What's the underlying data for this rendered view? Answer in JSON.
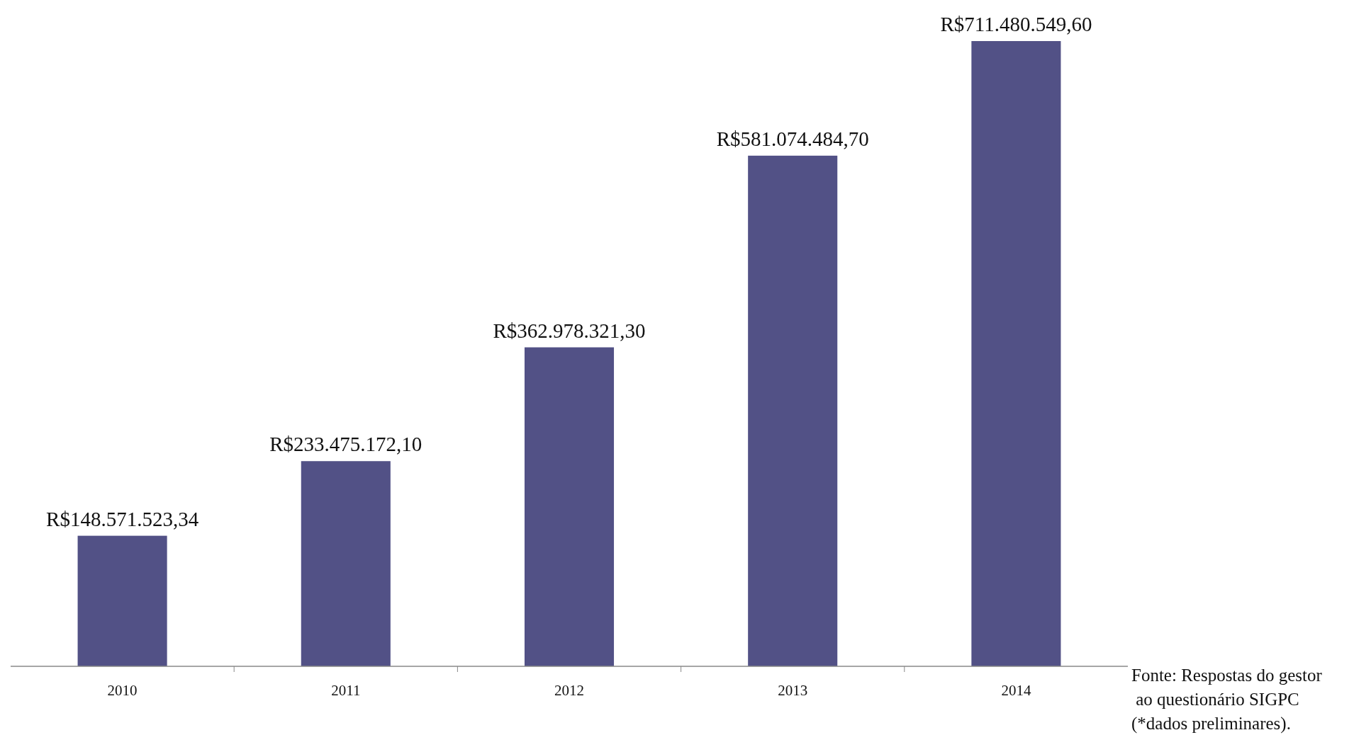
{
  "chart_data": {
    "type": "bar",
    "categories": [
      "2010",
      "2011",
      "2012",
      "2013",
      "2014"
    ],
    "values": [
      148571523.34,
      233475172.1,
      362978321.3,
      581074484.7,
      711480549.6
    ],
    "value_labels": [
      "R$148.571.523,34",
      "R$233.475.172,10",
      "R$362.978.321,30",
      "R$581.074.484,70",
      "R$711.480.549,60"
    ],
    "color": "#525186",
    "annotations": [
      "Fonte: Respostas do gestor\n ao questionário SIGPC\n(*dados preliminares)."
    ]
  }
}
